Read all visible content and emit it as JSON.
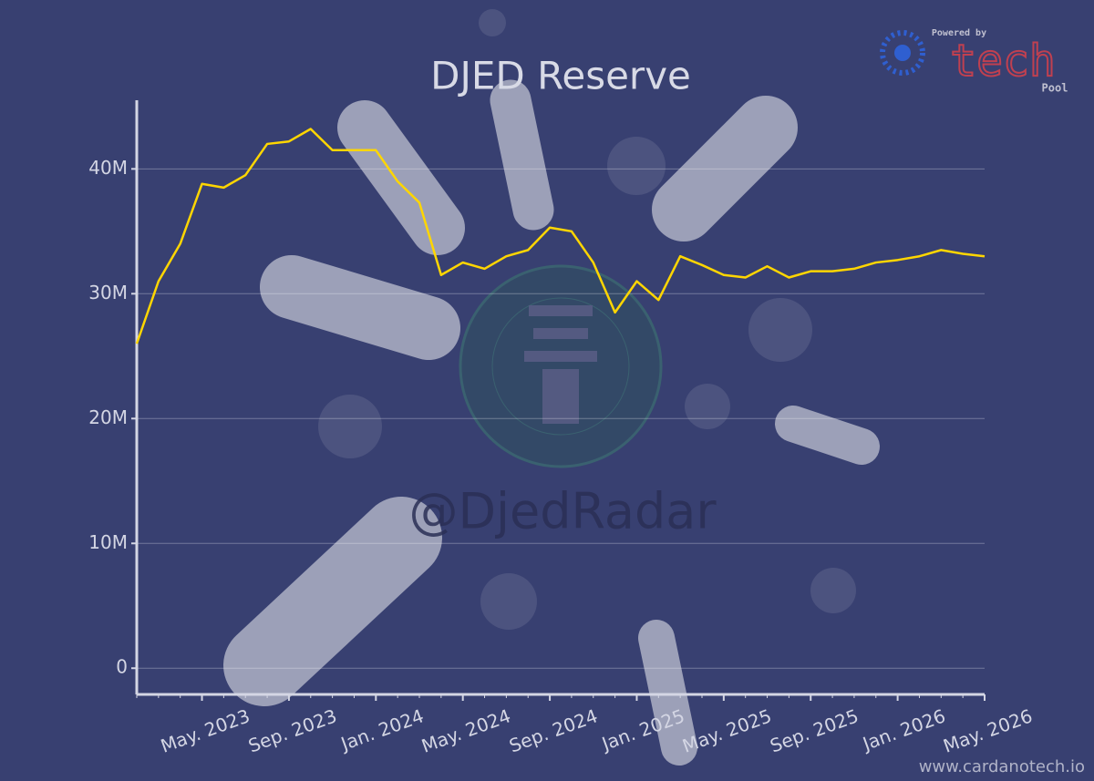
{
  "chart_data": {
    "type": "line",
    "title": "DJED Reserve",
    "watermark": "@DjedRadar",
    "credit": "www.cardanotech.io",
    "logo": {
      "caption": "Powered by",
      "word": "tech",
      "sub": "Pool"
    },
    "x": [
      "2023-02",
      "2023-03",
      "2023-04",
      "2023-05",
      "2023-06",
      "2023-07",
      "2023-08",
      "2023-09",
      "2023-10",
      "2023-11",
      "2023-12",
      "2024-01",
      "2024-02",
      "2024-03",
      "2024-04",
      "2024-05",
      "2024-06",
      "2024-07",
      "2024-08",
      "2024-09",
      "2024-10",
      "2024-11",
      "2024-12",
      "2025-01",
      "2025-02",
      "2025-03",
      "2025-04",
      "2025-05",
      "2025-06",
      "2025-07",
      "2025-08",
      "2025-09",
      "2025-10",
      "2025-11",
      "2025-12",
      "2026-01",
      "2026-02",
      "2026-03",
      "2026-04",
      "2026-05"
    ],
    "series": [
      {
        "name": "DJED Reserve",
        "color": "#ffd600",
        "values": [
          26000000,
          31000000,
          34000000,
          38800000,
          38500000,
          39500000,
          42000000,
          42200000,
          43200000,
          41500000,
          41500000,
          41500000,
          39000000,
          37300000,
          31500000,
          32500000,
          32000000,
          33000000,
          33500000,
          35300000,
          35000000,
          32500000,
          28500000,
          31000000,
          29500000,
          33000000,
          32300000,
          31500000,
          31300000,
          32200000,
          31300000,
          31800000,
          31800000,
          32000000,
          32500000,
          32700000,
          33000000,
          33500000,
          33200000,
          33000000
        ]
      }
    ],
    "xlim": [
      "2023-02",
      "2026-05"
    ],
    "xticks": [
      {
        "value": "2023-05",
        "label": "May. 2023"
      },
      {
        "value": "2023-09",
        "label": "Sep. 2023"
      },
      {
        "value": "2024-01",
        "label": "Jan. 2024"
      },
      {
        "value": "2024-05",
        "label": "May. 2024"
      },
      {
        "value": "2024-09",
        "label": "Sep. 2024"
      },
      {
        "value": "2025-01",
        "label": "Jan. 2025"
      },
      {
        "value": "2025-05",
        "label": "May. 2025"
      },
      {
        "value": "2025-09",
        "label": "Sep. 2025"
      },
      {
        "value": "2026-01",
        "label": "Jan. 2026"
      },
      {
        "value": "2026-05",
        "label": "May. 2026"
      }
    ],
    "ylim": [
      -2100000,
      45500000
    ],
    "yticks": [
      0,
      {
        "value": 10000000,
        "label": "10M"
      },
      {
        "value": 20000000,
        "label": "20M"
      },
      {
        "value": 30000000,
        "label": "30M"
      },
      {
        "value": 40000000,
        "label": "40M"
      }
    ],
    "grid": true
  }
}
